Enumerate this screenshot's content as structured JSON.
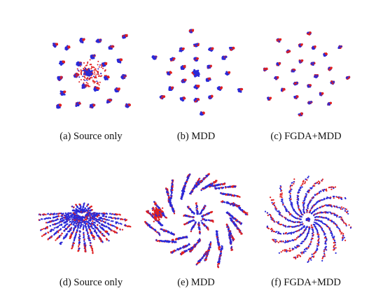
{
  "colors": {
    "source": "#2a2ad8",
    "target": "#e02020"
  },
  "panels": [
    {
      "label": "(a)  Source only",
      "pattern": "ring-clusters-with-center"
    },
    {
      "label": "(b)  MDD",
      "pattern": "ring-clusters"
    },
    {
      "label": "(c)  FGDA+MDD",
      "pattern": "ring-clusters-compact"
    },
    {
      "label": "(d)  Source only",
      "pattern": "fan-streaks"
    },
    {
      "label": "(e)  MDD",
      "pattern": "ring-streaks"
    },
    {
      "label": "(f)  FGDA+MDD",
      "pattern": "spiral-streaks"
    }
  ]
}
